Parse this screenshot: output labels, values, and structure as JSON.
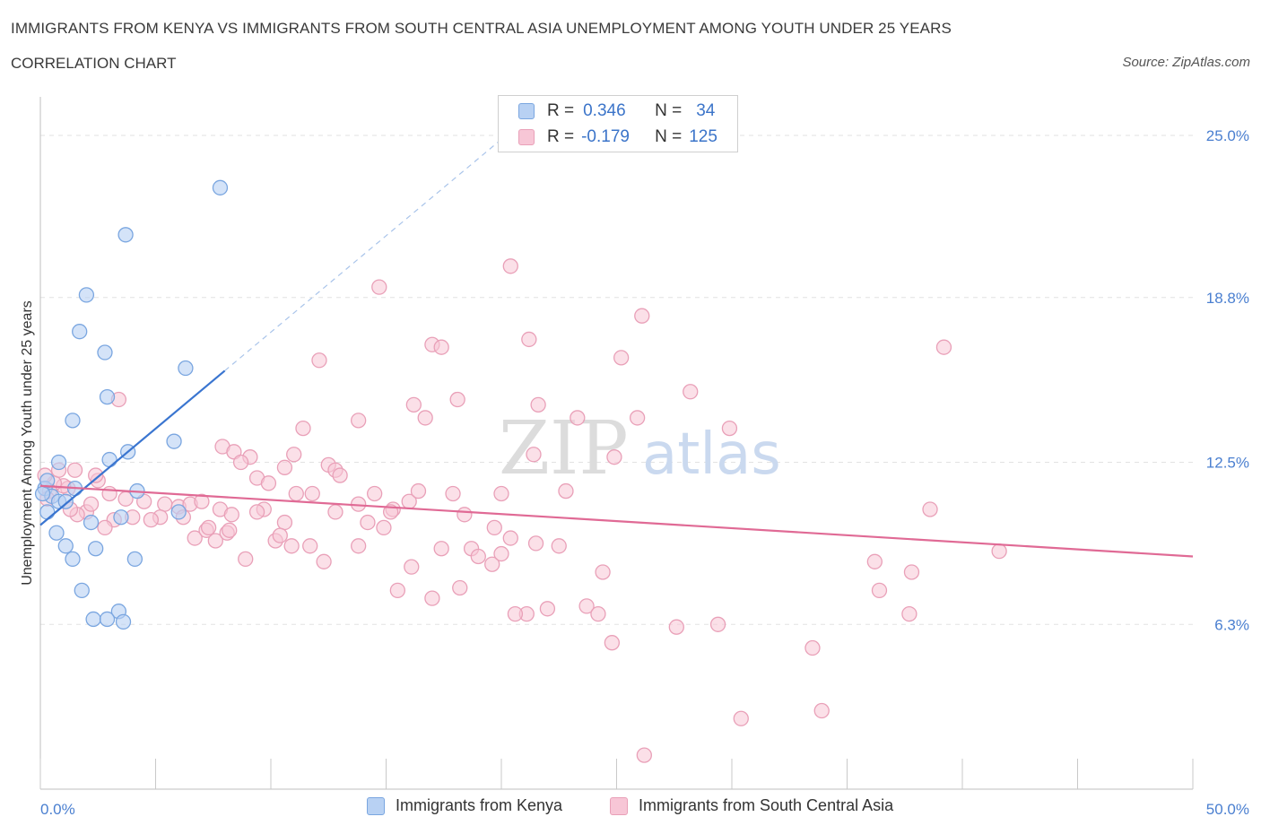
{
  "header": {
    "title": "IMMIGRANTS FROM KENYA VS IMMIGRANTS FROM SOUTH CENTRAL ASIA UNEMPLOYMENT AMONG YOUTH UNDER 25 YEARS",
    "subtitle": "CORRELATION CHART",
    "source": "Source: ZipAtlas.com"
  },
  "watermark": "ZIPatlas",
  "colors": {
    "kenya_fill": "#b8d1f3",
    "kenya_stroke": "#7aa6e0",
    "kenya_line": "#3a75d0",
    "sca_fill": "#f7c6d6",
    "sca_stroke": "#e9a0b8",
    "sca_line": "#e06a95",
    "axis_label": "#4a7fd0"
  },
  "legend_top": {
    "kenya": {
      "r_label": "R =",
      "r_value": "0.346",
      "n_label": "N =",
      "n_value": "34"
    },
    "sca": {
      "r_label": "R =",
      "r_value": "-0.179",
      "n_label": "N =",
      "n_value": "125"
    }
  },
  "legend_bottom": {
    "kenya": "Immigrants from Kenya",
    "sca": "Immigrants from South Central Asia"
  },
  "chart_data": {
    "type": "scatter",
    "xlabel": "",
    "ylabel": "Unemployment Among Youth under 25 years",
    "xlim": [
      0,
      50
    ],
    "ylim": [
      0,
      26.2
    ],
    "x_tick_labels": [
      "0.0%",
      "50.0%"
    ],
    "y_ticks": [
      6.3,
      12.5,
      18.8,
      25.0
    ],
    "y_tick_labels": [
      "6.3%",
      "12.5%",
      "18.8%",
      "25.0%"
    ],
    "grid": true,
    "series": [
      {
        "name": "Immigrants from Kenya",
        "R": 0.346,
        "N": 34,
        "trend": {
          "x0": 0.0,
          "y0": 10.1,
          "x1": 8.0,
          "y1": 16.0,
          "dash_to_x": 20.0
        },
        "points": [
          [
            7.8,
            23.0
          ],
          [
            3.7,
            21.2
          ],
          [
            2.0,
            18.9
          ],
          [
            1.7,
            17.5
          ],
          [
            2.8,
            16.7
          ],
          [
            6.3,
            16.1
          ],
          [
            2.9,
            15.0
          ],
          [
            1.4,
            14.1
          ],
          [
            5.8,
            13.3
          ],
          [
            3.8,
            12.9
          ],
          [
            0.8,
            12.5
          ],
          [
            3.0,
            12.6
          ],
          [
            1.5,
            11.5
          ],
          [
            4.2,
            11.4
          ],
          [
            0.2,
            11.5
          ],
          [
            0.5,
            11.2
          ],
          [
            0.8,
            11.0
          ],
          [
            1.1,
            11.0
          ],
          [
            0.3,
            10.6
          ],
          [
            2.2,
            10.2
          ],
          [
            3.5,
            10.4
          ],
          [
            6.0,
            10.6
          ],
          [
            0.7,
            9.8
          ],
          [
            1.1,
            9.3
          ],
          [
            2.4,
            9.2
          ],
          [
            1.4,
            8.8
          ],
          [
            4.1,
            8.8
          ],
          [
            1.8,
            7.6
          ],
          [
            3.4,
            6.8
          ],
          [
            2.3,
            6.5
          ],
          [
            2.9,
            6.5
          ],
          [
            3.6,
            6.4
          ],
          [
            0.1,
            11.3
          ],
          [
            0.3,
            11.8
          ]
        ]
      },
      {
        "name": "Immigrants from South Central Asia",
        "R": -0.179,
        "N": 125,
        "trend": {
          "x0": 0.0,
          "y0": 11.6,
          "x1": 50.0,
          "y1": 8.9
        },
        "points": [
          [
            20.4,
            20.0
          ],
          [
            14.7,
            19.2
          ],
          [
            26.1,
            18.1
          ],
          [
            21.2,
            17.2
          ],
          [
            17.0,
            17.0
          ],
          [
            39.2,
            16.9
          ],
          [
            17.4,
            16.9
          ],
          [
            12.1,
            16.4
          ],
          [
            25.2,
            16.5
          ],
          [
            13.8,
            14.1
          ],
          [
            16.2,
            14.7
          ],
          [
            21.6,
            14.7
          ],
          [
            23.3,
            14.2
          ],
          [
            25.9,
            14.2
          ],
          [
            16.7,
            14.2
          ],
          [
            28.2,
            15.2
          ],
          [
            18.1,
            14.9
          ],
          [
            29.9,
            13.8
          ],
          [
            11.4,
            13.8
          ],
          [
            3.4,
            14.9
          ],
          [
            7.9,
            13.1
          ],
          [
            8.4,
            12.9
          ],
          [
            9.1,
            12.7
          ],
          [
            11.0,
            12.8
          ],
          [
            12.5,
            12.4
          ],
          [
            12.8,
            12.2
          ],
          [
            10.6,
            12.3
          ],
          [
            8.7,
            12.5
          ],
          [
            9.4,
            11.9
          ],
          [
            9.9,
            11.7
          ],
          [
            13.0,
            12.0
          ],
          [
            21.4,
            12.8
          ],
          [
            24.9,
            12.7
          ],
          [
            1.5,
            12.2
          ],
          [
            2.5,
            11.8
          ],
          [
            3.0,
            11.3
          ],
          [
            3.7,
            11.1
          ],
          [
            4.5,
            11.0
          ],
          [
            5.4,
            10.9
          ],
          [
            6.0,
            10.8
          ],
          [
            6.5,
            10.9
          ],
          [
            7.0,
            11.0
          ],
          [
            7.8,
            10.7
          ],
          [
            8.3,
            10.5
          ],
          [
            9.7,
            10.7
          ],
          [
            10.6,
            10.2
          ],
          [
            11.1,
            11.3
          ],
          [
            12.8,
            10.6
          ],
          [
            13.8,
            10.9
          ],
          [
            14.5,
            11.3
          ],
          [
            15.3,
            10.7
          ],
          [
            16.0,
            11.0
          ],
          [
            16.4,
            11.4
          ],
          [
            17.9,
            11.3
          ],
          [
            18.4,
            10.5
          ],
          [
            20.0,
            11.3
          ],
          [
            22.8,
            11.4
          ],
          [
            5.2,
            10.4
          ],
          [
            4.0,
            10.4
          ],
          [
            3.2,
            10.3
          ],
          [
            2.8,
            10.0
          ],
          [
            2.0,
            10.6
          ],
          [
            1.6,
            10.5
          ],
          [
            1.2,
            11.5
          ],
          [
            1.0,
            11.6
          ],
          [
            0.6,
            11.7
          ],
          [
            0.4,
            11.4
          ],
          [
            0.2,
            12.0
          ],
          [
            0.8,
            12.2
          ],
          [
            2.4,
            12.0
          ],
          [
            4.8,
            10.3
          ],
          [
            6.2,
            10.4
          ],
          [
            6.7,
            9.6
          ],
          [
            7.2,
            9.9
          ],
          [
            7.6,
            9.5
          ],
          [
            8.1,
            9.8
          ],
          [
            10.2,
            9.5
          ],
          [
            10.9,
            9.3
          ],
          [
            11.7,
            9.3
          ],
          [
            12.3,
            8.7
          ],
          [
            13.8,
            9.3
          ],
          [
            14.9,
            10.0
          ],
          [
            17.4,
            9.2
          ],
          [
            18.7,
            9.2
          ],
          [
            19.7,
            10.0
          ],
          [
            20.4,
            9.6
          ],
          [
            21.5,
            9.4
          ],
          [
            22.5,
            9.3
          ],
          [
            19.0,
            8.9
          ],
          [
            19.6,
            8.6
          ],
          [
            20.0,
            9.0
          ],
          [
            7.3,
            10.0
          ],
          [
            8.2,
            9.9
          ],
          [
            8.9,
            8.8
          ],
          [
            10.4,
            9.7
          ],
          [
            14.2,
            10.2
          ],
          [
            15.2,
            10.6
          ],
          [
            9.4,
            10.6
          ],
          [
            11.8,
            11.3
          ],
          [
            2.2,
            10.9
          ],
          [
            16.1,
            8.5
          ],
          [
            15.5,
            7.6
          ],
          [
            17.0,
            7.3
          ],
          [
            18.2,
            7.7
          ],
          [
            24.4,
            8.3
          ],
          [
            23.7,
            7.0
          ],
          [
            21.1,
            6.7
          ],
          [
            20.6,
            6.7
          ],
          [
            22.0,
            6.9
          ],
          [
            24.2,
            6.7
          ],
          [
            36.2,
            8.7
          ],
          [
            37.8,
            8.3
          ],
          [
            36.4,
            7.6
          ],
          [
            37.7,
            6.7
          ],
          [
            41.6,
            9.1
          ],
          [
            38.6,
            10.7
          ],
          [
            27.6,
            6.2
          ],
          [
            29.4,
            6.3
          ],
          [
            24.8,
            5.6
          ],
          [
            33.5,
            5.4
          ],
          [
            30.4,
            2.7
          ],
          [
            33.9,
            3.0
          ],
          [
            26.2,
            1.3
          ],
          [
            0.3,
            11.1
          ],
          [
            1.3,
            10.7
          ]
        ]
      }
    ]
  }
}
